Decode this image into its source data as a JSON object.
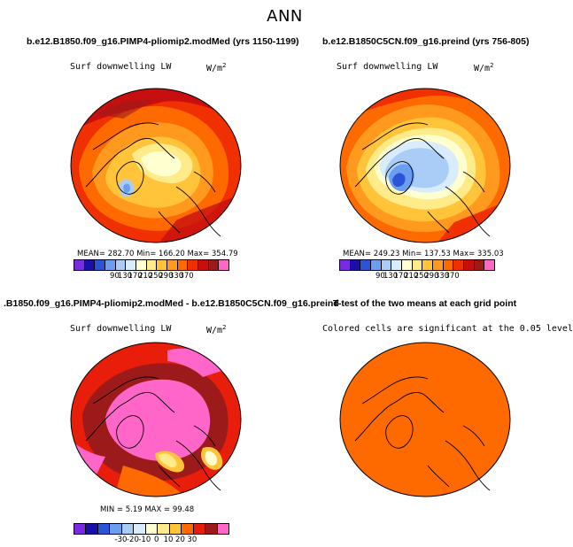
{
  "figure_title": "ANN",
  "colors": {
    "abs_scale": [
      "#7a2be0",
      "#1a0fa8",
      "#2a55d8",
      "#6b9ef0",
      "#a9cdf6",
      "#d8ecfb",
      "#ffffd0",
      "#ffeb8a",
      "#ffc43a",
      "#ff9a1e",
      "#ff6a00",
      "#f03000",
      "#c80f0f",
      "#9c1a1a",
      "#ff66c8"
    ],
    "diff_scale": [
      "#7a2be0",
      "#1a0fa8",
      "#2a55d8",
      "#6b9ef0",
      "#a9cdf6",
      "#d8ecfb",
      "#ffffd0",
      "#ffeb8a",
      "#ffc43a",
      "#ff6a00",
      "#e81e0a",
      "#9c1a1a",
      "#ff66c8"
    ],
    "signif": "#ff6a00",
    "coast": "#000000"
  },
  "panels": {
    "p1": {
      "title": "b.e12.B1850.f09_g16.PIMP4-pliomip2.modMed (yrs 1150-1199)",
      "variable": "Surf downwelling LW",
      "units": "W/m",
      "units_sup": "2",
      "stats": "MEAN= 282.70   Min= 166.20   Max= 354.79",
      "ticks": [
        "90",
        "130",
        "170",
        "210",
        "250",
        "290",
        "330",
        "370"
      ]
    },
    "p2": {
      "title": "b.e12.B1850C5CN.f09_g16.preind (yrs 756-805)",
      "variable": "Surf downwelling LW",
      "units": "W/m",
      "units_sup": "2",
      "stats": "MEAN= 249.23   Min= 137.53   Max= 335.03",
      "ticks": [
        "90",
        "130",
        "170",
        "210",
        "250",
        "290",
        "330",
        "370"
      ]
    },
    "p3": {
      "title": ".B1850.f09_g16.PIMP4-pliomip2.modMed - b.e12.B1850C5CN.f09_g16.preind",
      "variable": "Surf downwelling LW",
      "units": "W/m",
      "units_sup": "2",
      "stats": "MIN =   5.19 MAX =  99.48",
      "ticks": [
        "-30",
        "-20",
        "-10",
        "0",
        "10",
        "20",
        "30"
      ]
    },
    "p4": {
      "title": "T-test of the two means at each grid point",
      "subtitle": "Colored cells are significant at the 0.05 level"
    }
  }
}
